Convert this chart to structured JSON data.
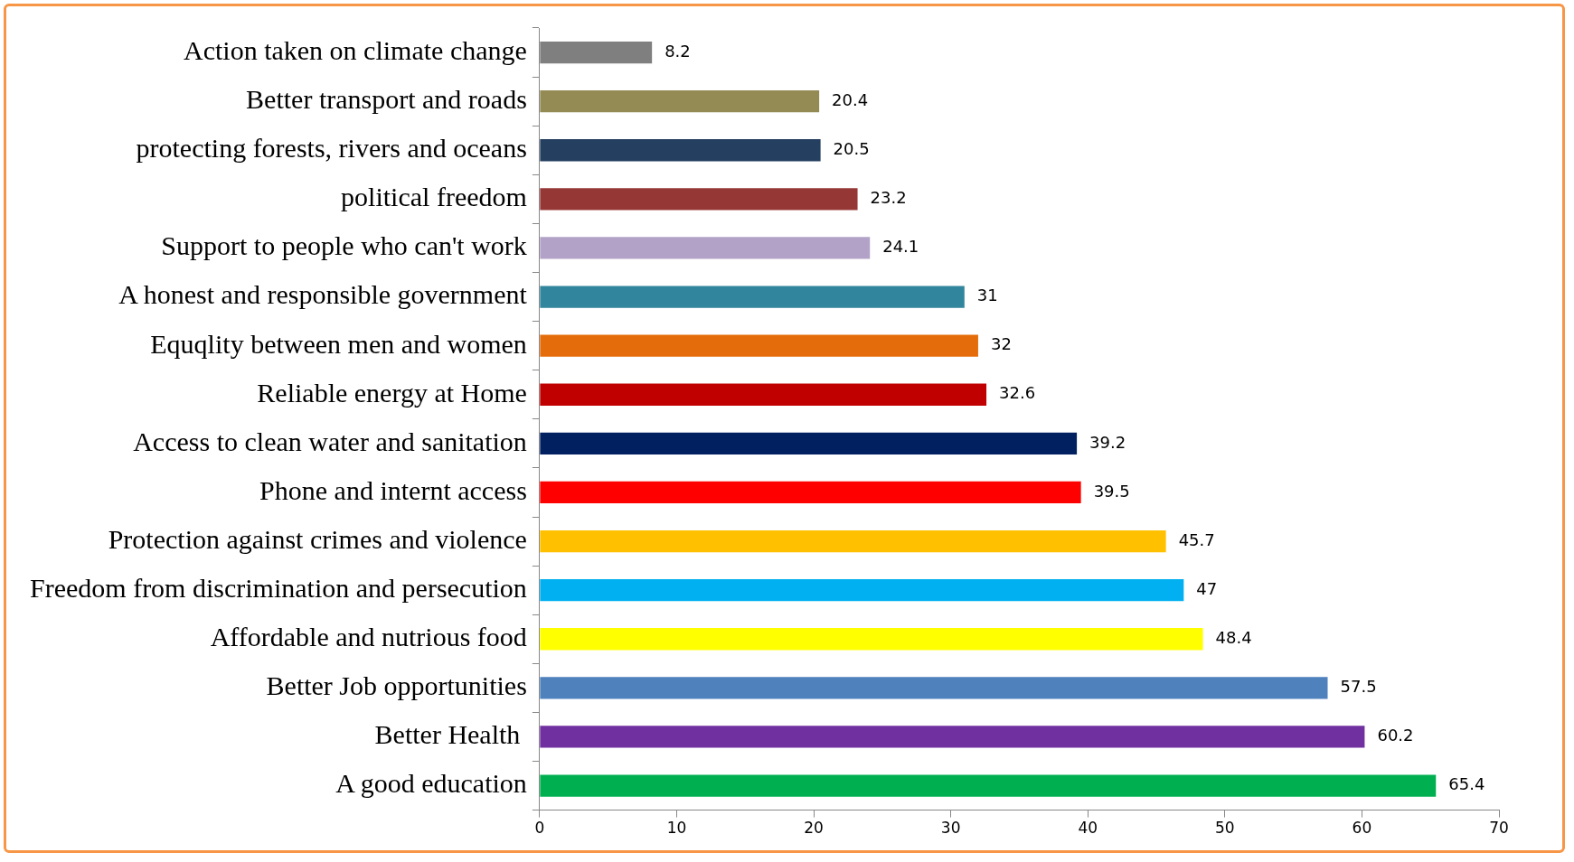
{
  "chart_data": {
    "type": "bar",
    "orientation": "horizontal",
    "categories": [
      "Action taken on climate change",
      "Better transport and roads",
      "protecting forests, rivers and oceans",
      "political freedom",
      "Support to people who can't work",
      "A honest and responsible government",
      "Equqlity between men and women",
      "Reliable energy at Home",
      "Access to clean water and sanitation",
      "Phone and internt access",
      "Protection against crimes and violence",
      "Freedom from discrimination and persecution",
      "Affordable and nutrious food",
      "Better Job opportunities",
      "Better Health ",
      "A good education"
    ],
    "values": [
      8.2,
      20.4,
      20.5,
      23.2,
      24.1,
      31,
      32,
      32.6,
      39.2,
      39.5,
      45.7,
      47,
      48.4,
      57.5,
      60.2,
      65.4
    ],
    "colors": [
      "#7f7f7f",
      "#948a54",
      "#243f60",
      "#953735",
      "#b3a2c7",
      "#31859c",
      "#e46c0a",
      "#c00000",
      "#002060",
      "#ff0000",
      "#ffc000",
      "#00b0f0",
      "#ffff00",
      "#4f81bd",
      "#7030a0",
      "#00b050"
    ],
    "xlim": [
      0,
      70
    ],
    "xticks": [
      0,
      10,
      20,
      30,
      40,
      50,
      60,
      70
    ],
    "data_labels": true,
    "grid": false,
    "legend": false
  }
}
